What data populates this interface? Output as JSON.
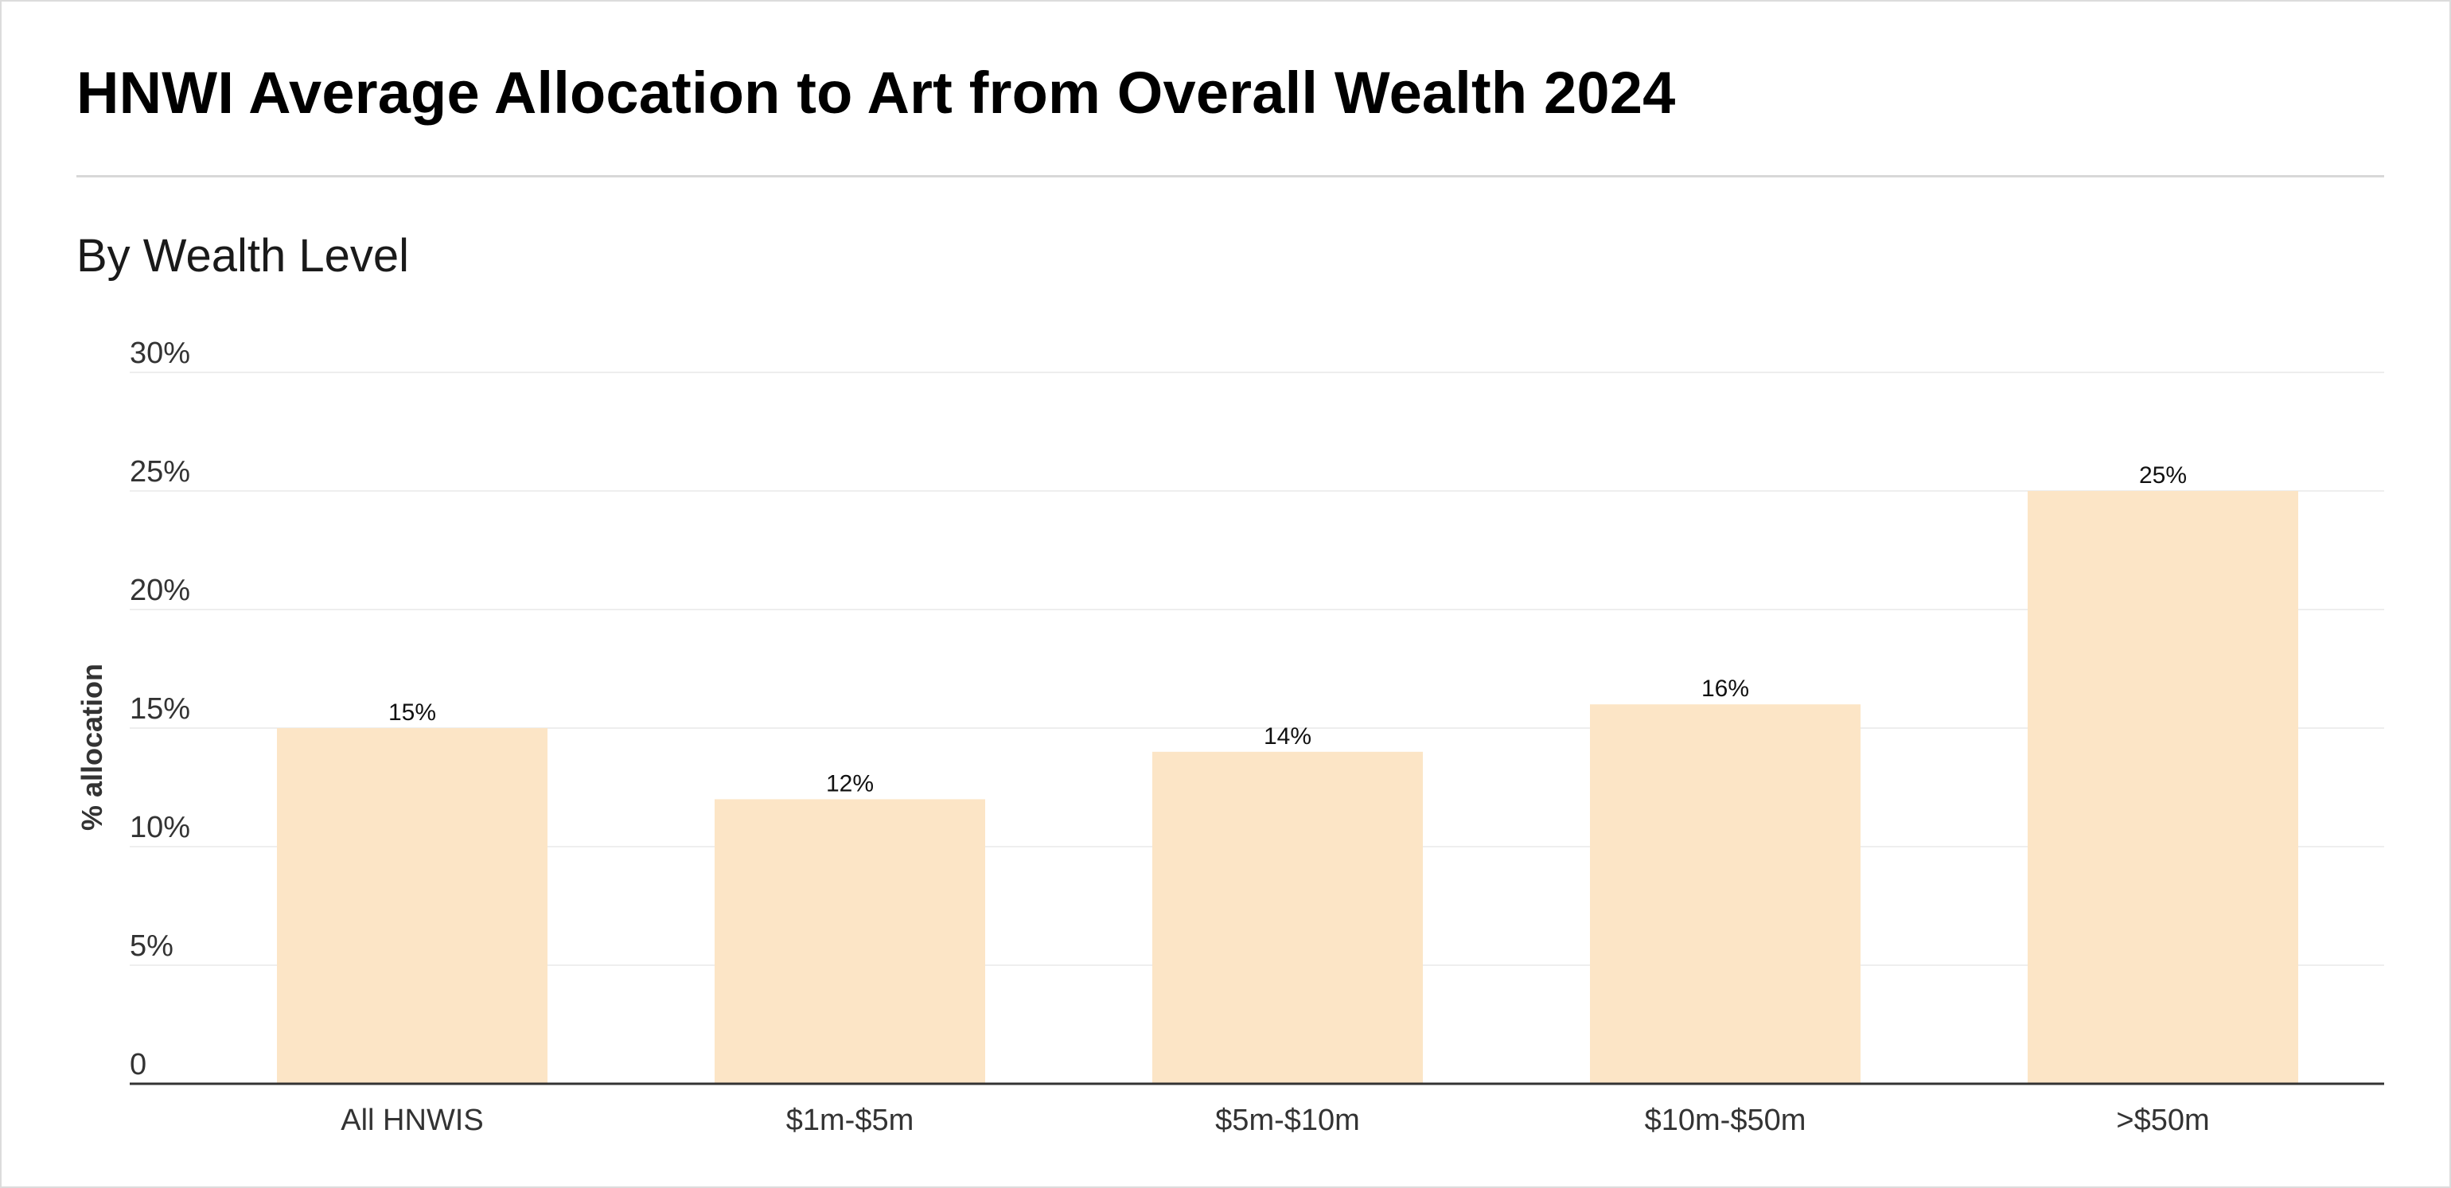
{
  "colors": {
    "bar": "#fce5c6",
    "gridline": "#eeeeee",
    "baseline": "#333333",
    "frame_border": "#dcdcdc",
    "rule": "#d8d8d8"
  },
  "chart_data": {
    "type": "bar",
    "title": "HNWI Average Allocation to Art from Overall Wealth 2024",
    "subtitle": "By Wealth Level",
    "xlabel": "",
    "ylabel": "% allocation",
    "categories": [
      "All HNWIS",
      "$1m-$5m",
      "$5m-$10m",
      "$10m-$50m",
      ">$50m"
    ],
    "series": [
      {
        "values": [
          15,
          12,
          14,
          16,
          25
        ],
        "labels": [
          "15%",
          "12%",
          "14%",
          "16%",
          "25%"
        ]
      }
    ],
    "ylim": [
      0,
      30
    ],
    "yticks": [
      0,
      5,
      10,
      15,
      20,
      25,
      30
    ],
    "ytick_labels": [
      "0",
      "5%",
      "10%",
      "15%",
      "20%",
      "25%",
      "30%"
    ],
    "grid": true,
    "legend": "none"
  }
}
